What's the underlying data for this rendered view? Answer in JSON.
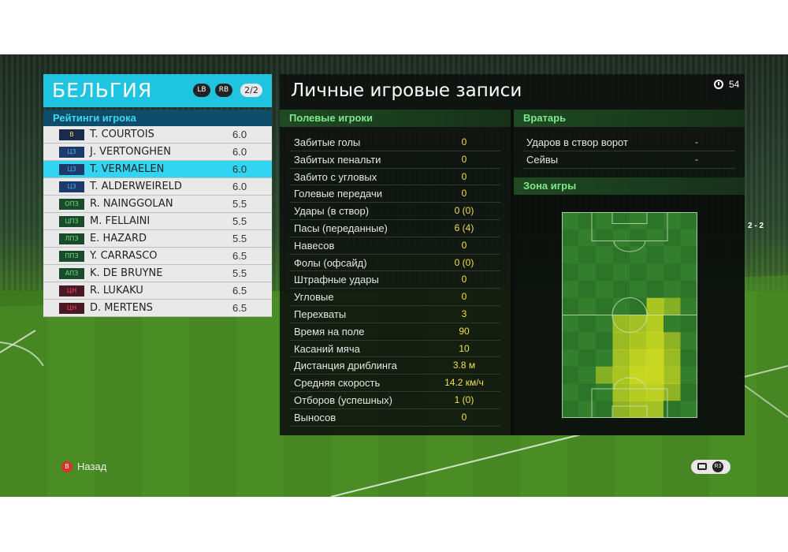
{
  "team": {
    "name": "БЕЛЬГИЯ",
    "lb_label": "LB",
    "rb_label": "RB",
    "page": "2/2"
  },
  "ratings_title": "Рейтинги игрока",
  "players": [
    {
      "pos": "В",
      "pos_color": "#1a2a4a",
      "badge_text_color": "#f0d84a",
      "name": "T. COURTOIS",
      "rating": "6.0"
    },
    {
      "pos": "ЦЗ",
      "pos_color": "#1e3a6a",
      "badge_text_color": "#4ab0f0",
      "name": "J. VERTONGHEN",
      "rating": "6.0"
    },
    {
      "pos": "ЦЗ",
      "pos_color": "#1e3a6a",
      "badge_text_color": "#4ab0f0",
      "name": "T. VERMAELEN",
      "rating": "6.0",
      "selected": true
    },
    {
      "pos": "ЦЗ",
      "pos_color": "#1e3a6a",
      "badge_text_color": "#4ab0f0",
      "name": "T. ALDERWEIRELD",
      "rating": "6.0"
    },
    {
      "pos": "ОПЗ",
      "pos_color": "#1c4a2c",
      "badge_text_color": "#6ae07a",
      "name": "R. NAINGGOLAN",
      "rating": "5.5"
    },
    {
      "pos": "ЦПЗ",
      "pos_color": "#1c4a2c",
      "badge_text_color": "#6ae07a",
      "name": "M. FELLAINI",
      "rating": "5.5"
    },
    {
      "pos": "ЛПЗ",
      "pos_color": "#1c4a2c",
      "badge_text_color": "#6ae07a",
      "name": "E. HAZARD",
      "rating": "5.5"
    },
    {
      "pos": "ППЗ",
      "pos_color": "#1c4a2c",
      "badge_text_color": "#6ae07a",
      "name": "Y. CARRASCO",
      "rating": "6.5"
    },
    {
      "pos": "АПЗ",
      "pos_color": "#1c4a2c",
      "badge_text_color": "#6ae07a",
      "name": "K. DE BRUYNE",
      "rating": "5.5"
    },
    {
      "pos": "ЦН",
      "pos_color": "#4a1a24",
      "badge_text_color": "#f04a6a",
      "name": "R. LUKAKU",
      "rating": "6.5"
    },
    {
      "pos": "ЦН",
      "pos_color": "#4a1a24",
      "badge_text_color": "#f04a6a",
      "name": "D. MERTENS",
      "rating": "6.5"
    }
  ],
  "main": {
    "title": "Личные игровые записи",
    "timer": "54",
    "field_header": "Полевые игроки",
    "stats": [
      {
        "label": "Забитые голы",
        "value": "0"
      },
      {
        "label": "Забитых пенальти",
        "value": "0"
      },
      {
        "label": "Забито с угловых",
        "value": "0"
      },
      {
        "label": "Голевые передачи",
        "value": "0"
      },
      {
        "label": "Удары (в створ)",
        "value": "0 (0)"
      },
      {
        "label": "Пасы (переданные)",
        "value": "6 (4)"
      },
      {
        "label": "Навесов",
        "value": "0"
      },
      {
        "label": "Фолы (офсайд)",
        "value": "0 (0)"
      },
      {
        "label": "Штрафные удары",
        "value": "0"
      },
      {
        "label": "Угловые",
        "value": "0"
      },
      {
        "label": "Перехваты",
        "value": "3"
      },
      {
        "label": "Время на поле",
        "value": "90"
      },
      {
        "label": "Касаний мяча",
        "value": "10"
      },
      {
        "label": "Дистанция дриблинга",
        "value": "3.8 м"
      },
      {
        "label": "Средняя скорость",
        "value": "14.2 км/ч"
      },
      {
        "label": "Отборов (успешных)",
        "value": "1 (0)"
      },
      {
        "label": "Выносов",
        "value": "0"
      }
    ],
    "gk_header": "Вратарь",
    "gk_stats": [
      {
        "label": "Ударов в створ ворот",
        "value": "-"
      },
      {
        "label": "Сейвы",
        "value": "-"
      }
    ],
    "zone_header": "Зона игры"
  },
  "footer": {
    "back_button": "B",
    "back_label": "Назад",
    "right_button": "R3"
  },
  "score_side": "2 - 2",
  "colors": {
    "accent_cyan": "#1ec4e0",
    "section_green": "#7ee88d",
    "stat_value_yellow": "#f0e04a",
    "heat_yellow": "#d8e020"
  }
}
